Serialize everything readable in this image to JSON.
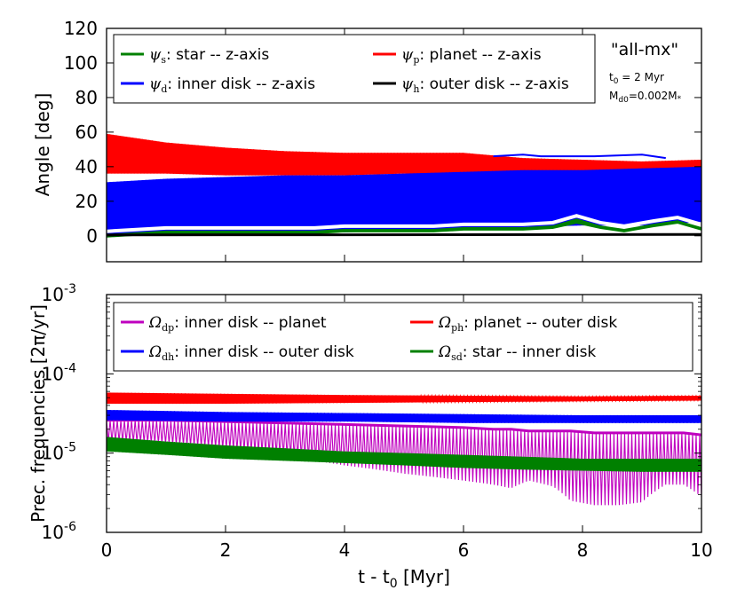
{
  "chart_data": [
    {
      "type": "line",
      "id": "angles",
      "ylabel": "Angle [deg]",
      "xlabel": "",
      "xlim": [
        0,
        10
      ],
      "ylim": [
        -15,
        120
      ],
      "y_ticks": [
        "0",
        "20",
        "40",
        "60",
        "80",
        "100",
        "120"
      ],
      "annotation": {
        "title": "\"all-mx\"",
        "t0_label": "t",
        "t0_sub": "0",
        "t0_value": " = 2 Myr",
        "md_label": "M",
        "md_sub": "d0",
        "md_value": "=0.002M",
        "md_star": "*"
      },
      "legend": [
        {
          "symbol": "ψ",
          "sub": "s",
          "text": ": star -- z-axis",
          "color": "#008000"
        },
        {
          "symbol": "ψ",
          "sub": "p",
          "text": ": planet -- z-axis",
          "color": "#ff0000"
        },
        {
          "symbol": "ψ",
          "sub": "d",
          "text": ": inner disk -- z-axis",
          "color": "#0000ff"
        },
        {
          "symbol": "ψ",
          "sub": "h",
          "text": ": outer disk -- z-axis",
          "color": "#000000"
        }
      ],
      "series": [
        {
          "name": "planet -- z-axis",
          "color": "#ff0000",
          "x": [
            0,
            1,
            2,
            3,
            4,
            5,
            6,
            7,
            8,
            9,
            10
          ],
          "upper": [
            59,
            54,
            51,
            49,
            48,
            48,
            48,
            45,
            44,
            43,
            44
          ],
          "lower": [
            36,
            36,
            35,
            35,
            35,
            36,
            36,
            37,
            37,
            37,
            38
          ]
        },
        {
          "name": "inner disk -- z-axis",
          "color": "#0000ff",
          "x": [
            0,
            1,
            2,
            3,
            4,
            5,
            6,
            7,
            8,
            9,
            10
          ],
          "upper": [
            31,
            33,
            34,
            35,
            35,
            36,
            37,
            38,
            38,
            39,
            40
          ],
          "lower": [
            0.5,
            0.5,
            1,
            2,
            2,
            3,
            4,
            5,
            6,
            6,
            8
          ],
          "peak_upper": {
            "x": [
              6.5,
              7,
              7.3,
              7.7,
              8.2,
              9.0,
              9.4
            ],
            "y": [
              46,
              47,
              46,
              46,
              46,
              47,
              45
            ]
          }
        },
        {
          "name": "star -- z-axis",
          "color": "#008000",
          "x": [
            0,
            0.5,
            1,
            1.5,
            2,
            2.5,
            3,
            3.5,
            4,
            4.5,
            5,
            5.5,
            6,
            6.5,
            7,
            7.5,
            7.9,
            8.3,
            8.7,
            9.2,
            9.6,
            10
          ],
          "upper": [
            1,
            2,
            3,
            3,
            3,
            3,
            3,
            3,
            4,
            4,
            4,
            4,
            5,
            5,
            5,
            6,
            10,
            6,
            4,
            7,
            9,
            5
          ],
          "lower": [
            -1,
            0,
            1,
            1,
            1,
            1,
            1,
            1,
            2,
            2,
            2,
            2,
            3,
            3,
            3,
            4,
            7,
            4,
            2,
            5,
            7,
            3
          ]
        },
        {
          "name": "outer disk -- z-axis",
          "color": "#000000",
          "x": [
            0,
            10
          ],
          "values": [
            0.5,
            0.8
          ]
        }
      ]
    },
    {
      "type": "line",
      "id": "frequencies",
      "yscale": "log",
      "ylabel": "Prec. frequencies [2π/yr]",
      "xlabel": "t - t",
      "xlabel_sub": "0",
      "xlabel_unit": " [Myr]",
      "xlim": [
        0,
        10
      ],
      "ylim": [
        1e-06,
        0.001
      ],
      "x_ticks": [
        "0",
        "2",
        "4",
        "6",
        "8",
        "10"
      ],
      "y_ticks": [
        {
          "base": "10",
          "exp": "-6",
          "value": 1e-06
        },
        {
          "base": "10",
          "exp": "-5",
          "value": 1e-05
        },
        {
          "base": "10",
          "exp": "-4",
          "value": 0.0001
        },
        {
          "base": "10",
          "exp": "-3",
          "value": 0.001
        }
      ],
      "legend": [
        {
          "symbol": "Ω",
          "sub": "dp",
          "text": ": inner disk -- planet",
          "color": "#bf00bf"
        },
        {
          "symbol": "Ω",
          "sub": "ph",
          "text": ": planet -- outer disk",
          "color": "#ff0000"
        },
        {
          "symbol": "Ω",
          "sub": "dh",
          "text": ": inner disk -- outer disk",
          "color": "#0000ff"
        },
        {
          "symbol": "Ω",
          "sub": "sd",
          "text": ": star -- inner disk",
          "color": "#008000"
        }
      ],
      "series": [
        {
          "name": "inner disk -- planet",
          "color": "#bf00bf",
          "x": [
            0,
            1,
            2,
            3,
            4,
            5,
            6,
            6.5,
            6.8,
            7.1,
            7.5,
            7.8,
            8.2,
            8.6,
            9.0,
            9.4,
            9.7,
            10
          ],
          "upper": [
            2.6e-05,
            2.6e-05,
            2.5e-05,
            2.4e-05,
            2.3e-05,
            2.2e-05,
            2.1e-05,
            2e-05,
            2e-05,
            1.9e-05,
            1.9e-05,
            1.9e-05,
            1.8e-05,
            1.8e-05,
            1.8e-05,
            1.8e-05,
            1.8e-05,
            1.7e-05
          ],
          "lower": [
            1.4e-05,
            1.3e-05,
            1.1e-05,
            9e-06,
            7e-06,
            5.5e-06,
            4.5e-06,
            4e-06,
            3.6e-06,
            4.5e-06,
            3.8e-06,
            2.5e-06,
            2.2e-06,
            2.2e-06,
            2.4e-06,
            4e-06,
            4e-06,
            2.8e-06
          ]
        },
        {
          "name": "planet -- outer disk",
          "color": "#ff0000",
          "x": [
            0,
            2,
            4,
            6,
            8,
            10
          ],
          "upper": [
            5.8e-05,
            5.6e-05,
            5.4e-05,
            5.3e-05,
            5.2e-05,
            5.3e-05
          ],
          "lower": [
            4.2e-05,
            4.2e-05,
            4.3e-05,
            4.4e-05,
            4.5e-05,
            4.6e-05
          ]
        },
        {
          "name": "inner disk -- outer disk",
          "color": "#0000ff",
          "x": [
            0,
            2,
            4,
            6,
            8,
            10
          ],
          "upper": [
            3.5e-05,
            3.3e-05,
            3.2e-05,
            3.1e-05,
            3e-05,
            3e-05
          ],
          "lower": [
            2.6e-05,
            2.5e-05,
            2.5e-05,
            2.4e-05,
            2.4e-05,
            2.4e-05
          ]
        },
        {
          "name": "star -- inner disk",
          "color": "#008000",
          "x": [
            0,
            1,
            2,
            3,
            4,
            5,
            6,
            7,
            8,
            9,
            10
          ],
          "upper": [
            1.6e-05,
            1.4e-05,
            1.25e-05,
            1.15e-05,
            1.05e-05,
            1e-05,
            9.5e-06,
            9e-06,
            8.5e-06,
            8.5e-06,
            8.5e-06
          ],
          "lower": [
            1.05e-05,
            9.5e-06,
            8.5e-06,
            8e-06,
            7.5e-06,
            7e-06,
            6.5e-06,
            6.2e-06,
            6e-06,
            5.8e-06,
            5.8e-06
          ]
        }
      ]
    }
  ]
}
